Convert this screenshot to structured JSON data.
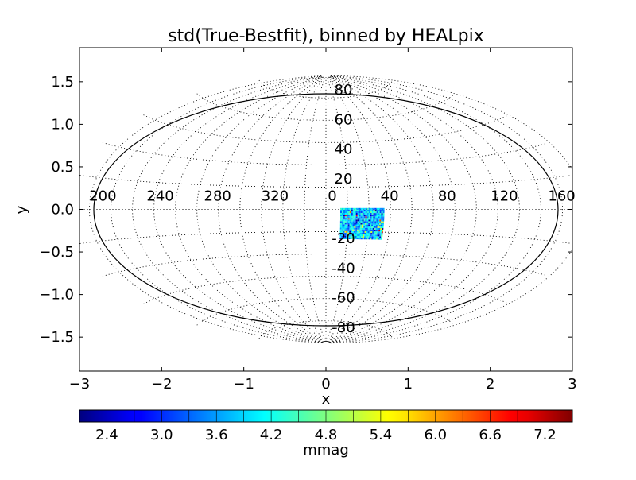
{
  "chart_data": {
    "type": "heatmap",
    "title": "std(True-Bestfit), binned by HEALpix",
    "xlabel": "x",
    "ylabel": "y",
    "projection": "Aitoff-style full-sky ellipse",
    "xlim": [
      -3,
      3
    ],
    "ylim": [
      -1.9,
      1.9
    ],
    "x_ticks": [
      "−3",
      "−2",
      "−1",
      "0",
      "1",
      "2",
      "3"
    ],
    "y_ticks": [
      "−1.5",
      "−1.0",
      "−0.5",
      "0.0",
      "0.5",
      "1.0",
      "1.5"
    ],
    "y_tick_values": [
      -1.5,
      -1.0,
      -0.5,
      0.0,
      0.5,
      1.0,
      1.5
    ],
    "x_tick_values": [
      -3,
      -2,
      -1,
      0,
      1,
      2,
      3
    ],
    "grid_ra_labels": [
      "200",
      "240",
      "280",
      "320",
      "0",
      "40",
      "80",
      "120",
      "160"
    ],
    "grid_ra_values": [
      200,
      240,
      280,
      320,
      0,
      40,
      80,
      120,
      160
    ],
    "grid_dec_labels": [
      "80",
      "60",
      "40",
      "20",
      "-20",
      "-40",
      "-60",
      "-80"
    ],
    "grid_dec_values": [
      80,
      60,
      40,
      20,
      -20,
      -40,
      -60,
      -80
    ],
    "data_region": {
      "ra_range_deg": [
        10,
        40
      ],
      "dec_range_deg": [
        -20,
        0
      ],
      "value_range": [
        2.2,
        7.1
      ],
      "typical_value": 3.8
    },
    "colorbar": {
      "label": "mmag",
      "vmin": 2.1,
      "vmax": 7.5,
      "ticks": [
        "2.4",
        "3.0",
        "3.6",
        "4.2",
        "4.8",
        "5.4",
        "6.0",
        "6.6",
        "7.2"
      ],
      "tick_values": [
        2.4,
        3.0,
        3.6,
        4.2,
        4.8,
        5.4,
        6.0,
        6.6,
        7.2
      ],
      "colormap": "jet",
      "orientation": "horizontal"
    },
    "grid": true
  }
}
